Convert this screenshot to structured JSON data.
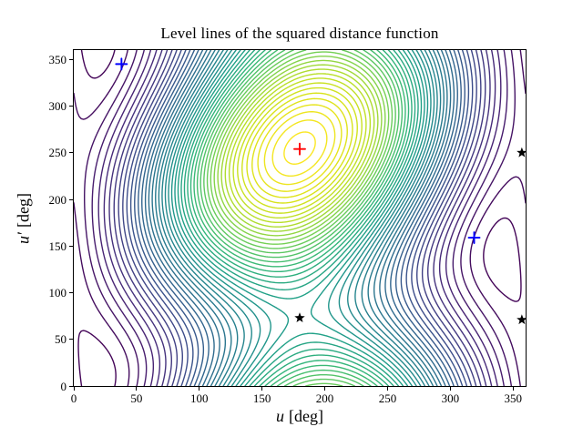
{
  "figure": {
    "title": "Level lines of the squared distance function",
    "xlabel": {
      "var": "u",
      "unit": "[deg]"
    },
    "ylabel": {
      "var": "u′",
      "unit": "[deg]"
    }
  },
  "chart_data": {
    "type": "contour",
    "title": "Level lines of the squared distance function",
    "xlabel": "u [deg]",
    "ylabel": "u′ [deg]",
    "xlim": [
      0,
      360
    ],
    "ylim": [
      0,
      360
    ],
    "xticks": [
      0,
      50,
      100,
      150,
      200,
      250,
      300,
      350
    ],
    "yticks": [
      0,
      50,
      100,
      150,
      200,
      250,
      300,
      350
    ],
    "grid": false,
    "legend": false,
    "n_levels": 50,
    "line_width": 1.4,
    "colormap": "viridis",
    "colormap_stops": [
      "#440154",
      "#482878",
      "#3e4a89",
      "#31688e",
      "#26828e",
      "#1f9e89",
      "#35b779",
      "#6ece58",
      "#b5de2b",
      "#dce319",
      "#fde725"
    ],
    "field_model": {
      "description": "Level lines of a periodic squared-distance surface: f(u,v) = a*cos(u-u0) + b*cos(v-v0) + c*cos((u-u0)-(v-v0)), angles in degrees. Maximum (innermost yellow rings) at (u0,v0); saddle point near (180,73); wrapped saddle/minimum structures at the u=0/360 edges.",
      "u0": 180,
      "v0": 255,
      "a": 1.5,
      "b": 0.55,
      "c": 0.5,
      "grid_step_deg": 1.5
    },
    "markers": [
      {
        "name": "blue-plus",
        "type": "plus",
        "color": "#0000ff",
        "points": [
          [
            38,
            345
          ],
          [
            319,
            159
          ]
        ]
      },
      {
        "name": "red-plus",
        "type": "plus",
        "color": "#ff0000",
        "points": [
          [
            180,
            254
          ]
        ]
      },
      {
        "name": "black-star",
        "type": "star",
        "color": "#000000",
        "points": [
          [
            180,
            73
          ],
          [
            357,
            250
          ],
          [
            357,
            71
          ]
        ]
      }
    ]
  }
}
